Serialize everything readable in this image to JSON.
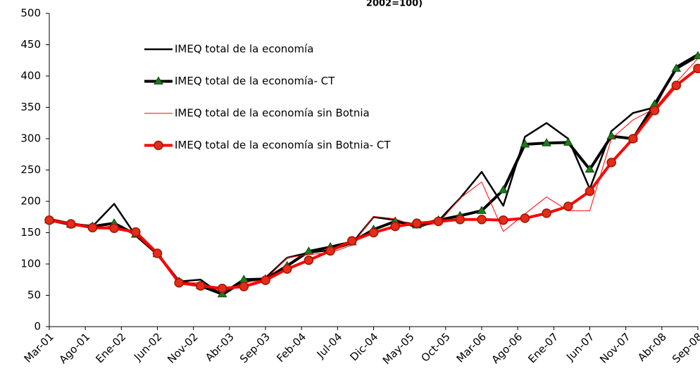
{
  "chart_data": {
    "type": "line",
    "title": "2002=100)",
    "xtick_labels": [
      "Mar-01",
      "Ago-01",
      "Ene-02",
      "Jun-02",
      "Nov-02",
      "Abr-03",
      "Sep-03",
      "Feb-04",
      "Jul-04",
      "Dic-04",
      "May-05",
      "Oct-05",
      "Mar-06",
      "Ago-06",
      "Ene-07",
      "Jun-07",
      "Nov-07",
      "Abr-08",
      "Sep-08"
    ],
    "ylim": [
      0,
      500
    ],
    "yticks": [
      0,
      50,
      100,
      150,
      200,
      250,
      300,
      350,
      400,
      450,
      500
    ],
    "legend": "upper left",
    "series": [
      {
        "name": "IMEQ total de la economía",
        "color": "#000000",
        "width": 2.5,
        "marker": "none",
        "values": [
          172,
          165,
          160,
          196,
          145,
          115,
          72,
          75,
          50,
          72,
          78,
          110,
          118,
          122,
          133,
          175,
          170,
          158,
          169,
          205,
          247,
          193,
          303,
          325,
          300,
          220,
          312,
          341,
          350,
          415,
          435
        ]
      },
      {
        "name": "IMEQ total de la economía- CT",
        "color": "#000000",
        "width": 4,
        "marker": "triangle",
        "values": [
          170,
          163,
          160,
          165,
          147,
          116,
          72,
          65,
          52,
          75,
          76,
          97,
          120,
          127,
          135,
          155,
          168,
          162,
          170,
          177,
          185,
          218,
          291,
          293,
          294,
          251,
          304,
          300,
          355,
          412,
          432
        ]
      },
      {
        "name": "IMEQ total de la economía sin Botnia",
        "color": "#ff0000",
        "width": 1,
        "marker": "none",
        "values": [
          168,
          163,
          157,
          161,
          146,
          115,
          70,
          70,
          55,
          70,
          75,
          110,
          115,
          118,
          130,
          176,
          172,
          160,
          165,
          205,
          231,
          152,
          180,
          207,
          185,
          185,
          300,
          330,
          348,
          390,
          428
        ]
      },
      {
        "name": "IMEQ total de la economía sin Botnia- CT",
        "color": "#ff0000",
        "width": 4,
        "marker": "circle",
        "values": [
          170,
          164,
          158,
          157,
          151,
          117,
          70,
          65,
          61,
          64,
          74,
          92,
          106,
          121,
          137,
          150,
          160,
          165,
          168,
          171,
          171,
          170,
          173,
          181,
          192,
          216,
          262,
          300,
          345,
          385,
          412
        ]
      }
    ]
  }
}
